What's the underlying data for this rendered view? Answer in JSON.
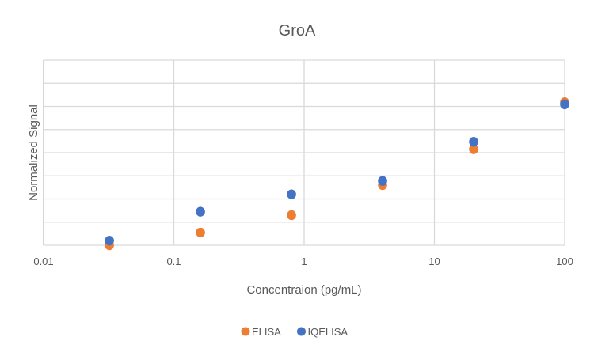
{
  "chart_data": {
    "type": "scatter",
    "title": "GroA",
    "xlabel": "Concentraion (pg/mL)",
    "ylabel": "Normalized Signal",
    "xscale": "log",
    "xlim": [
      0.01,
      100
    ],
    "xticks": [
      "0.01",
      "0.1",
      "1",
      "10",
      "100"
    ],
    "ylim": [
      0,
      8
    ],
    "yticks_labeled": false,
    "grid": true,
    "legend": "bottom",
    "series": [
      {
        "name": "ELISA",
        "color": "#ED7D31",
        "x": [
          0.032,
          0.16,
          0.8,
          4,
          20,
          100
        ],
        "y": [
          0.0,
          0.55,
          1.3,
          2.6,
          4.15,
          6.18
        ]
      },
      {
        "name": "IQELISA",
        "color": "#4472C4",
        "x": [
          0.032,
          0.16,
          0.8,
          4,
          20,
          100
        ],
        "y": [
          0.2,
          1.45,
          2.2,
          2.78,
          4.47,
          6.09
        ]
      }
    ]
  }
}
